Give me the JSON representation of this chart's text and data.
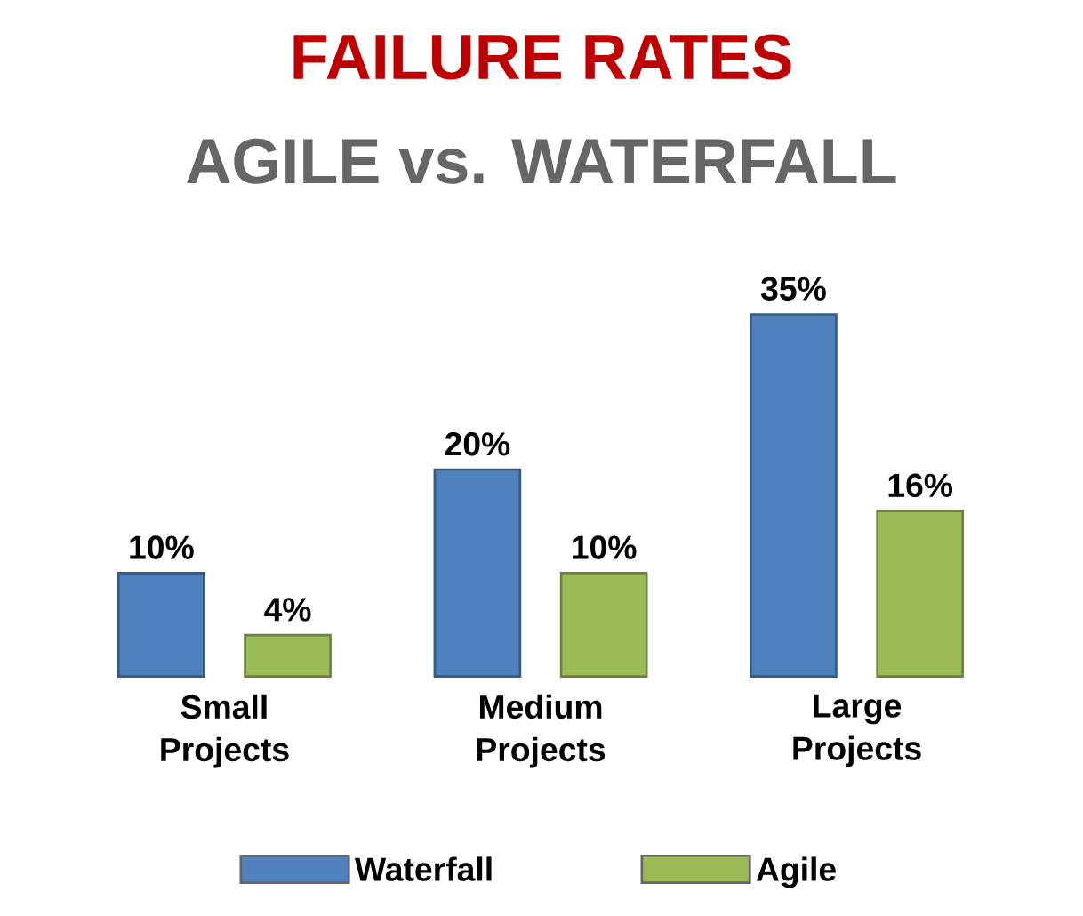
{
  "chart_data": {
    "type": "bar",
    "title": "FAILURE RATES",
    "subtitle": "AGILE vs. WATERFALL",
    "categories": [
      "Small Projects",
      "Medium Projects",
      "Large Projects"
    ],
    "series": [
      {
        "name": "Waterfall",
        "color": "#4f81bd",
        "values": [
          10,
          20,
          35
        ],
        "value_labels": [
          "10%",
          "20%",
          "35%"
        ]
      },
      {
        "name": "Agile",
        "color": "#9bbb59",
        "values": [
          4,
          10,
          16
        ],
        "value_labels": [
          "4%",
          "10%",
          "16%"
        ]
      }
    ],
    "legend": "bottom"
  }
}
